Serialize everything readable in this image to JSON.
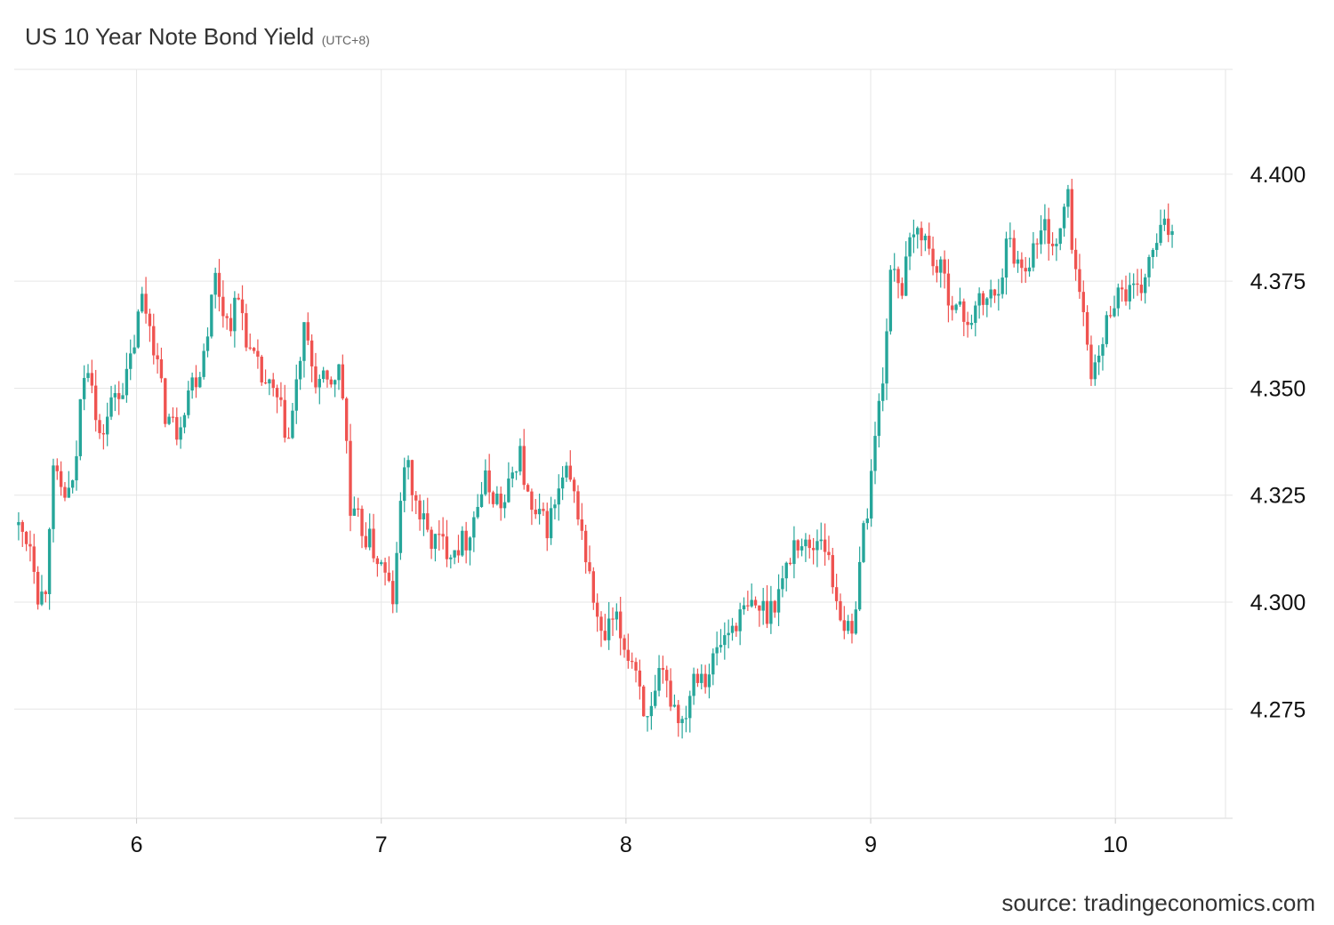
{
  "chart_data": {
    "type": "candlestick",
    "title": "US 10 Year Note Bond Yield",
    "subtitle": "(UTC+8)",
    "xlabel": "",
    "ylabel": "",
    "x_ticks": [
      {
        "label": "6",
        "t": 6.0
      },
      {
        "label": "7",
        "t": 7.0
      },
      {
        "label": "8",
        "t": 8.0
      },
      {
        "label": "9",
        "t": 9.0
      },
      {
        "label": "10",
        "t": 10.0
      }
    ],
    "y_ticks": [
      "4.275",
      "4.300",
      "4.325",
      "4.350",
      "4.375",
      "4.400"
    ],
    "xlim": [
      5.5,
      10.45
    ],
    "ylim": [
      4.2495,
      4.4245
    ],
    "grid": true,
    "colors": {
      "up": "#26a69a",
      "down": "#ef5350",
      "grid": "#e6e6e6"
    },
    "price_anchors": [
      [
        5.51,
        4.318
      ],
      [
        5.58,
        4.314
      ],
      [
        5.61,
        4.3
      ],
      [
        5.64,
        4.305
      ],
      [
        5.66,
        4.33
      ],
      [
        5.71,
        4.325
      ],
      [
        5.75,
        4.326
      ],
      [
        5.79,
        4.355
      ],
      [
        5.82,
        4.357
      ],
      [
        5.85,
        4.336
      ],
      [
        5.88,
        4.342
      ],
      [
        5.92,
        4.349
      ],
      [
        5.97,
        4.352
      ],
      [
        6.03,
        4.371
      ],
      [
        6.07,
        4.364
      ],
      [
        6.12,
        4.345
      ],
      [
        6.17,
        4.34
      ],
      [
        6.22,
        4.35
      ],
      [
        6.27,
        4.355
      ],
      [
        6.33,
        4.376
      ],
      [
        6.38,
        4.365
      ],
      [
        6.43,
        4.371
      ],
      [
        6.47,
        4.358
      ],
      [
        6.52,
        4.352
      ],
      [
        6.58,
        4.347
      ],
      [
        6.63,
        4.338
      ],
      [
        6.66,
        4.35
      ],
      [
        6.69,
        4.363
      ],
      [
        6.74,
        4.352
      ],
      [
        6.79,
        4.35
      ],
      [
        6.83,
        4.355
      ],
      [
        6.86,
        4.345
      ],
      [
        6.88,
        4.32
      ],
      [
        6.92,
        4.318
      ],
      [
        6.97,
        4.313
      ],
      [
        7.01,
        4.308
      ],
      [
        7.06,
        4.3
      ],
      [
        7.1,
        4.334
      ],
      [
        7.15,
        4.323
      ],
      [
        7.2,
        4.315
      ],
      [
        7.28,
        4.313
      ],
      [
        7.35,
        4.314
      ],
      [
        7.43,
        4.328
      ],
      [
        7.51,
        4.322
      ],
      [
        7.57,
        4.336
      ],
      [
        7.62,
        4.32
      ],
      [
        7.69,
        4.318
      ],
      [
        7.76,
        4.33
      ],
      [
        7.81,
        4.322
      ],
      [
        7.86,
        4.305
      ],
      [
        7.91,
        4.29
      ],
      [
        7.96,
        4.296
      ],
      [
        8.0,
        4.29
      ],
      [
        8.05,
        4.285
      ],
      [
        8.1,
        4.27
      ],
      [
        8.15,
        4.283
      ],
      [
        8.19,
        4.278
      ],
      [
        8.24,
        4.272
      ],
      [
        8.29,
        4.285
      ],
      [
        8.34,
        4.283
      ],
      [
        8.39,
        4.29
      ],
      [
        8.46,
        4.296
      ],
      [
        8.53,
        4.299
      ],
      [
        8.59,
        4.298
      ],
      [
        8.65,
        4.305
      ],
      [
        8.7,
        4.315
      ],
      [
        8.76,
        4.312
      ],
      [
        8.81,
        4.317
      ],
      [
        8.85,
        4.305
      ],
      [
        8.89,
        4.297
      ],
      [
        8.93,
        4.29
      ],
      [
        8.96,
        4.31
      ],
      [
        8.99,
        4.32
      ],
      [
        9.03,
        4.34
      ],
      [
        9.06,
        4.355
      ],
      [
        9.1,
        4.382
      ],
      [
        9.13,
        4.372
      ],
      [
        9.17,
        4.383
      ],
      [
        9.21,
        4.388
      ],
      [
        9.26,
        4.38
      ],
      [
        9.31,
        4.375
      ],
      [
        9.36,
        4.368
      ],
      [
        9.41,
        4.366
      ],
      [
        9.46,
        4.37
      ],
      [
        9.52,
        4.372
      ],
      [
        9.57,
        4.385
      ],
      [
        9.62,
        4.378
      ],
      [
        9.67,
        4.382
      ],
      [
        9.72,
        4.388
      ],
      [
        9.77,
        4.382
      ],
      [
        9.81,
        4.396
      ],
      [
        9.84,
        4.38
      ],
      [
        9.88,
        4.365
      ],
      [
        9.92,
        4.352
      ],
      [
        9.96,
        4.362
      ],
      [
        10.0,
        4.372
      ],
      [
        10.05,
        4.373
      ],
      [
        10.1,
        4.371
      ],
      [
        10.14,
        4.378
      ],
      [
        10.19,
        4.386
      ],
      [
        10.24,
        4.388
      ]
    ]
  },
  "source_text": "source: tradingeconomics.com"
}
